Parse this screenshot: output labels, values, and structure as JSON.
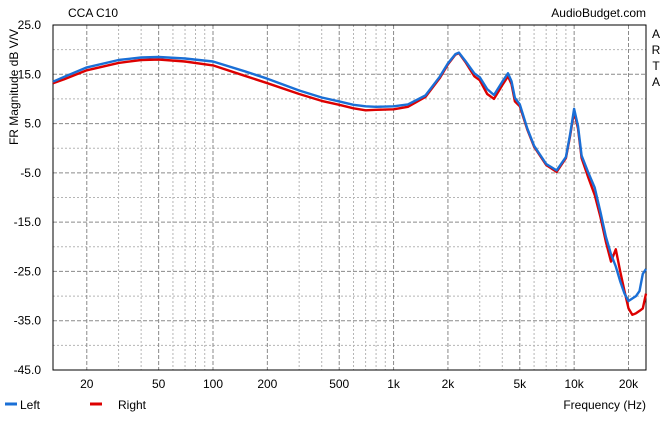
{
  "chart_data": {
    "type": "line",
    "title": "CCA C10",
    "watermark": "AudioBudget.com",
    "side_label": "ARTA",
    "xlabel": "Frequency (Hz)",
    "ylabel": "FR Magnitude dB V/V",
    "x_scale": "log",
    "xlim": [
      13,
      25000
    ],
    "ylim": [
      -45,
      25
    ],
    "x_ticks": [
      {
        "value": 20,
        "label": "20"
      },
      {
        "value": 50,
        "label": "50"
      },
      {
        "value": 100,
        "label": "100"
      },
      {
        "value": 200,
        "label": "200"
      },
      {
        "value": 500,
        "label": "500"
      },
      {
        "value": 1000,
        "label": "1k"
      },
      {
        "value": 2000,
        "label": "2k"
      },
      {
        "value": 5000,
        "label": "5k"
      },
      {
        "value": 10000,
        "label": "10k"
      },
      {
        "value": 20000,
        "label": "20k"
      }
    ],
    "y_ticks": [
      {
        "value": 25,
        "label": "25.0"
      },
      {
        "value": 15,
        "label": "15.0"
      },
      {
        "value": 5,
        "label": "5.0"
      },
      {
        "value": -5,
        "label": "-5.0"
      },
      {
        "value": -15,
        "label": "-15.0"
      },
      {
        "value": -25,
        "label": "-25.0"
      },
      {
        "value": -35,
        "label": "-35.0"
      },
      {
        "value": -45,
        "label": "-45.0"
      }
    ],
    "grid": true,
    "legend_position": "bottom-left",
    "series": [
      {
        "name": "Right",
        "color": "#dd0000",
        "x": [
          13,
          15,
          20,
          30,
          40,
          50,
          70,
          100,
          150,
          200,
          300,
          400,
          500,
          600,
          700,
          800,
          1000,
          1200,
          1500,
          1800,
          2000,
          2200,
          2300,
          2500,
          2800,
          3000,
          3300,
          3600,
          4000,
          4300,
          4500,
          4700,
          5000,
          5500,
          6000,
          7000,
          8000,
          9000,
          9500,
          10000,
          10500,
          11000,
          12000,
          13000,
          14000,
          15000,
          16000,
          17000,
          18000,
          19000,
          20000,
          21000,
          22000,
          23000,
          24000,
          25000
        ],
        "y": [
          13.2,
          14.0,
          15.8,
          17.3,
          17.9,
          18.0,
          17.6,
          16.8,
          14.7,
          13.2,
          11.0,
          9.6,
          8.8,
          8.1,
          7.7,
          7.8,
          7.9,
          8.4,
          10.4,
          14.2,
          17.0,
          19.0,
          19.3,
          17.5,
          14.6,
          13.8,
          11.0,
          10.0,
          12.8,
          14.6,
          13.0,
          9.5,
          8.5,
          3.8,
          0.3,
          -3.4,
          -4.8,
          -2.0,
          2.5,
          7.5,
          4.0,
          -2.0,
          -6.0,
          -9.5,
          -14.0,
          -19.0,
          -23.0,
          -20.5,
          -25.0,
          -29.0,
          -32.5,
          -33.8,
          -33.5,
          -33.0,
          -32.5,
          -29.5
        ]
      },
      {
        "name": "Left",
        "color": "#1a6fd6",
        "x": [
          13,
          15,
          20,
          30,
          40,
          50,
          70,
          100,
          150,
          200,
          300,
          400,
          500,
          600,
          700,
          800,
          1000,
          1200,
          1500,
          1800,
          2000,
          2200,
          2300,
          2500,
          2800,
          3000,
          3300,
          3600,
          4000,
          4300,
          4500,
          4700,
          5000,
          5500,
          6000,
          7000,
          8000,
          9000,
          9500,
          10000,
          10500,
          11000,
          12000,
          13000,
          14000,
          15000,
          16000,
          17000,
          18000,
          19000,
          20000,
          21000,
          22000,
          23000,
          24000,
          25000
        ],
        "y": [
          13.5,
          14.5,
          16.4,
          17.9,
          18.4,
          18.5,
          18.2,
          17.6,
          15.6,
          14.1,
          11.7,
          10.3,
          9.5,
          8.8,
          8.5,
          8.4,
          8.5,
          8.9,
          10.7,
          14.5,
          17.2,
          19.1,
          19.4,
          17.7,
          15.2,
          14.4,
          12.0,
          10.8,
          13.5,
          15.2,
          13.6,
          10.2,
          8.9,
          4.0,
          0.5,
          -3.2,
          -4.5,
          -1.8,
          2.8,
          8.0,
          4.5,
          -1.5,
          -5.0,
          -8.0,
          -13.0,
          -18.0,
          -21.5,
          -24.0,
          -27.0,
          -29.5,
          -31.0,
          -30.5,
          -30.0,
          -29.0,
          -25.5,
          -24.5
        ]
      }
    ],
    "legend_order": [
      "Left",
      "Right"
    ]
  }
}
